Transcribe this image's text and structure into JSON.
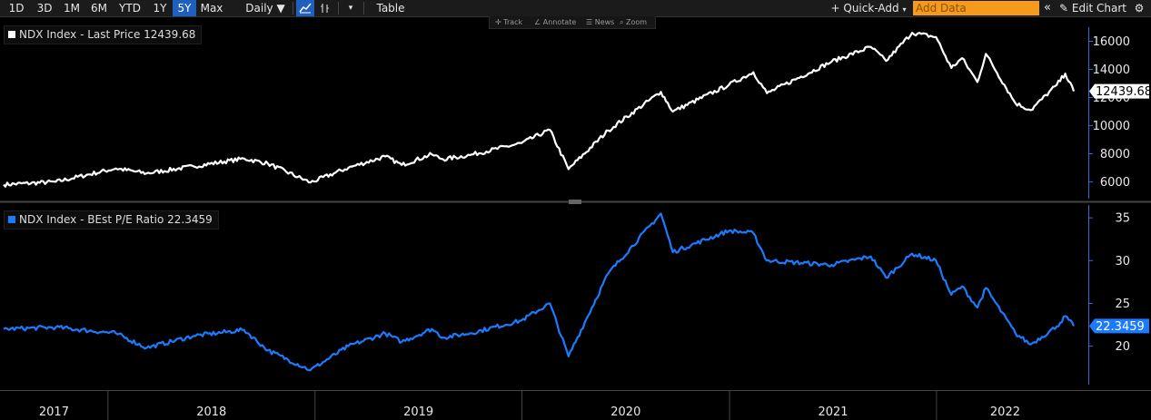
{
  "toolbar": {
    "ranges": [
      "1D",
      "3D",
      "1M",
      "6M",
      "YTD",
      "1Y",
      "5Y",
      "Max"
    ],
    "active_range": "5Y",
    "frequency": "Daily ▼",
    "table_label": "Table",
    "quick_add_label": "+ Quick-Add",
    "add_data_placeholder": "Add Data",
    "edit_chart_label": "Edit Chart"
  },
  "mini_tools": {
    "track": "Track",
    "annotate": "Annotate",
    "news": "News",
    "zoom": "Zoom"
  },
  "colors": {
    "price_line": "#ffffff",
    "pe_line": "#1a7bff",
    "axis": "#2f6fd0",
    "active_tab": "#1f5fbf",
    "add_data": "#f59a1b"
  },
  "chart_data": [
    {
      "type": "line",
      "legend": "NDX Index - Last Price 12439.68",
      "last_value_label": "12439.68",
      "y_ticks": [
        6000,
        8000,
        10000,
        12000,
        14000,
        16000
      ],
      "ylim": [
        4800,
        17000
      ],
      "x": [
        "2017-07-01",
        "2017-10-01",
        "2018-01-15",
        "2018-03-10",
        "2018-06-01",
        "2018-08-29",
        "2018-10-10",
        "2018-12-24",
        "2019-03-01",
        "2019-05-05",
        "2019-06-03",
        "2019-07-26",
        "2019-08-15",
        "2019-10-01",
        "2019-12-31",
        "2020-02-19",
        "2020-03-23",
        "2020-06-01",
        "2020-09-02",
        "2020-09-23",
        "2020-12-31",
        "2021-02-12",
        "2021-03-08",
        "2021-06-30",
        "2021-09-07",
        "2021-10-04",
        "2021-11-19",
        "2021-12-31",
        "2022-01-27",
        "2022-02-15",
        "2022-03-14",
        "2022-03-29",
        "2022-05-20",
        "2022-06-16",
        "2022-08-01",
        "2022-08-16",
        "2022-08-31"
      ],
      "y": [
        5800,
        6000,
        6950,
        6600,
        7100,
        7650,
        7300,
        5950,
        7000,
        7800,
        7200,
        7950,
        7600,
        7900,
        8750,
        9700,
        6900,
        9650,
        12400,
        11000,
        12900,
        13800,
        12300,
        14550,
        15600,
        14600,
        16600,
        16300,
        14100,
        14800,
        13100,
        15100,
        11600,
        11100,
        12900,
        13700,
        12440
      ]
    },
    {
      "type": "line",
      "legend": "NDX Index - BEst P/E Ratio 22.3459",
      "last_value_label": "22.3459",
      "y_ticks": [
        20,
        25,
        30,
        35
      ],
      "ylim": [
        15.5,
        36.5
      ],
      "x": [
        "2017-07-01",
        "2017-10-01",
        "2018-01-15",
        "2018-03-10",
        "2018-06-01",
        "2018-08-29",
        "2018-10-10",
        "2018-12-24",
        "2019-03-01",
        "2019-05-05",
        "2019-06-03",
        "2019-07-26",
        "2019-08-15",
        "2019-10-01",
        "2019-12-31",
        "2020-02-19",
        "2020-03-23",
        "2020-06-01",
        "2020-09-02",
        "2020-09-23",
        "2020-12-31",
        "2021-02-12",
        "2021-03-08",
        "2021-06-30",
        "2021-09-07",
        "2021-10-04",
        "2021-11-19",
        "2021-12-31",
        "2022-01-27",
        "2022-02-15",
        "2022-03-14",
        "2022-03-29",
        "2022-05-20",
        "2022-06-16",
        "2022-08-01",
        "2022-08-16",
        "2022-08-31"
      ],
      "y": [
        22.0,
        22.2,
        21.5,
        19.8,
        21.2,
        21.9,
        19.5,
        17.2,
        20.0,
        21.5,
        20.5,
        22.0,
        21.0,
        21.5,
        23.0,
        25.0,
        18.8,
        28.5,
        35.5,
        31.0,
        33.5,
        33.2,
        30.0,
        29.5,
        30.5,
        28.0,
        30.8,
        30.0,
        26.0,
        27.0,
        24.5,
        26.8,
        21.5,
        20.2,
        22.3,
        23.5,
        22.35
      ]
    }
  ],
  "x_axis": {
    "labels": [
      "2017",
      "2018",
      "2019",
      "2020",
      "2021",
      "2022"
    ]
  }
}
